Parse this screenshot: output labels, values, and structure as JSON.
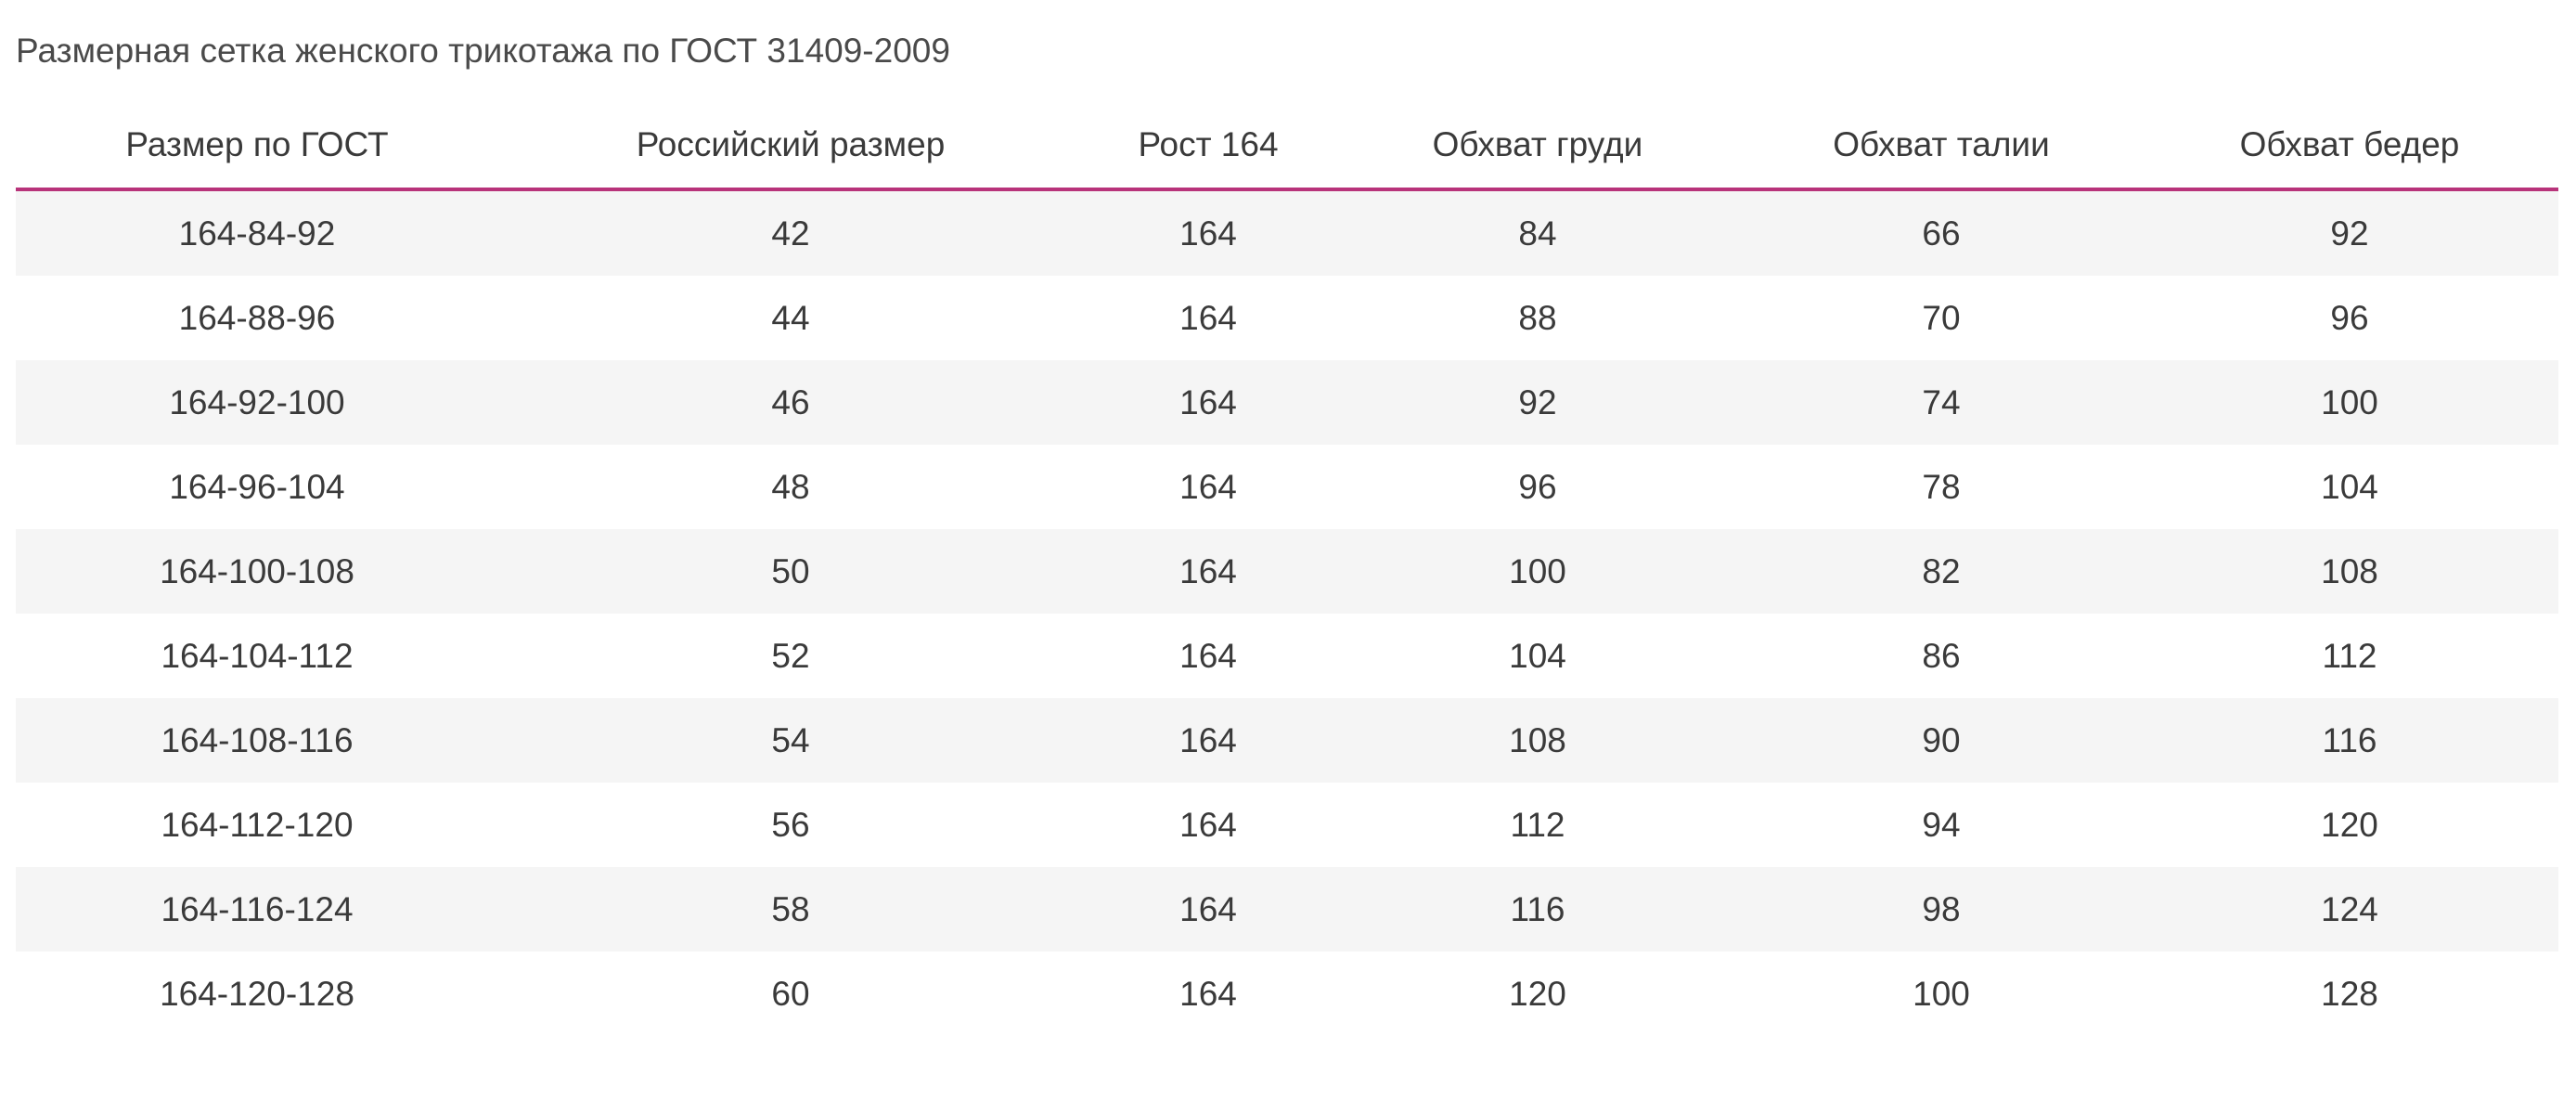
{
  "title": "Размерная сетка женского трикотажа по ГОСТ 31409-2009",
  "accent_color": "#b8337a",
  "table": {
    "headers": [
      "Размер по ГОСТ",
      "Российский размер",
      "Рост 164",
      "Обхват груди",
      "Обхват талии",
      "Обхват бедер"
    ],
    "rows": [
      [
        "164-84-92",
        "42",
        "164",
        "84",
        "66",
        "92"
      ],
      [
        "164-88-96",
        "44",
        "164",
        "88",
        "70",
        "96"
      ],
      [
        "164-92-100",
        "46",
        "164",
        "92",
        "74",
        "100"
      ],
      [
        "164-96-104",
        "48",
        "164",
        "96",
        "78",
        "104"
      ],
      [
        "164-100-108",
        "50",
        "164",
        "100",
        "82",
        "108"
      ],
      [
        "164-104-112",
        "52",
        "164",
        "104",
        "86",
        "112"
      ],
      [
        "164-108-116",
        "54",
        "164",
        "108",
        "90",
        "116"
      ],
      [
        "164-112-120",
        "56",
        "164",
        "112",
        "94",
        "120"
      ],
      [
        "164-116-124",
        "58",
        "164",
        "116",
        "98",
        "124"
      ],
      [
        "164-120-128",
        "60",
        "164",
        "120",
        "100",
        "128"
      ]
    ]
  }
}
